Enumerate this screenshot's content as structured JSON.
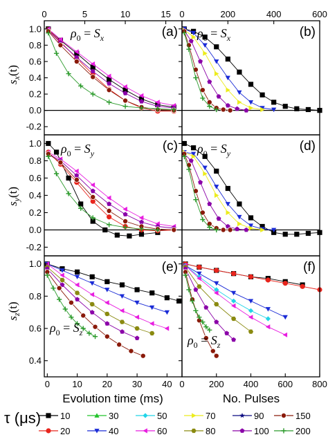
{
  "figure": {
    "top_axis_ticks": [
      "0",
      "5",
      "10",
      "15",
      "0",
      "200",
      "400",
      "600"
    ],
    "legend_title": "τ (μs)"
  },
  "chart_data": [
    {
      "id": "a",
      "type": "scatter",
      "panel_label": "(a)",
      "annotation": "ρ0 = Sx",
      "ylabel": "sx(t)",
      "ylim": [
        -0.3,
        1.1
      ],
      "xlim": [
        0,
        17
      ],
      "grid": false,
      "y_ticks": [
        "-0.2",
        "0.0",
        "0.2",
        "0.4",
        "0.6",
        "0.8",
        "1.0"
      ],
      "x_ticks_top": [
        "0",
        "5",
        "10",
        "15"
      ],
      "series": [
        {
          "name": "10",
          "x": [
            0.5,
            2,
            4,
            6,
            8,
            10,
            12,
            14,
            16
          ],
          "y": [
            1.0,
            0.86,
            0.7,
            0.53,
            0.38,
            0.25,
            0.14,
            0.07,
            0.04
          ]
        },
        {
          "name": "20",
          "x": [
            0.5,
            2,
            4,
            6,
            8,
            10,
            12,
            14,
            16
          ],
          "y": [
            0.99,
            0.84,
            0.64,
            0.44,
            0.26,
            0.12,
            0.03,
            -0.01,
            -0.01
          ]
        },
        {
          "name": "60",
          "x": [
            0.5,
            2,
            4,
            6,
            8,
            10,
            12,
            14,
            16
          ],
          "y": [
            1.0,
            0.87,
            0.72,
            0.57,
            0.42,
            0.29,
            0.18,
            0.1,
            0.06
          ]
        },
        {
          "name": "100",
          "x": [
            0.5,
            2,
            4,
            6,
            8,
            10,
            12,
            14,
            16
          ],
          "y": [
            0.98,
            0.83,
            0.65,
            0.48,
            0.33,
            0.21,
            0.11,
            0.05,
            0.03
          ]
        },
        {
          "name": "150",
          "x": [
            0.5,
            2,
            4,
            6,
            8,
            10,
            12,
            14,
            16
          ],
          "y": [
            0.97,
            0.8,
            0.6,
            0.41,
            0.25,
            0.12,
            0.04,
            0.01,
            0.0
          ]
        },
        {
          "name": "200",
          "x": [
            0.5,
            1.5,
            3,
            4.5,
            6,
            8,
            10,
            12,
            14,
            16
          ],
          "y": [
            0.95,
            0.7,
            0.45,
            0.3,
            0.2,
            0.1,
            0.05,
            0.03,
            0.02,
            0.01
          ]
        }
      ]
    },
    {
      "id": "b",
      "type": "scatter",
      "panel_label": "(b)",
      "annotation": "ρ0 = Sx",
      "ylim": [
        -0.3,
        1.1
      ],
      "xlim": [
        0,
        600
      ],
      "grid": false,
      "x_ticks_top": [
        "0",
        "200",
        "400",
        "600"
      ],
      "series": [
        {
          "name": "10",
          "x": [
            10,
            50,
            100,
            150,
            200,
            250,
            300,
            350,
            400,
            450,
            500,
            550,
            600
          ],
          "y": [
            1.0,
            0.97,
            0.9,
            0.78,
            0.63,
            0.47,
            0.32,
            0.19,
            0.1,
            0.05,
            0.02,
            0.01,
            0.0
          ]
        },
        {
          "name": "40",
          "x": [
            10,
            50,
            100,
            150,
            200,
            250,
            300,
            350,
            400
          ],
          "y": [
            1.0,
            0.95,
            0.8,
            0.6,
            0.4,
            0.22,
            0.1,
            0.03,
            0.01
          ]
        },
        {
          "name": "70",
          "x": [
            10,
            50,
            100,
            150,
            200,
            250,
            300,
            350
          ],
          "y": [
            0.99,
            0.9,
            0.7,
            0.45,
            0.25,
            0.1,
            0.03,
            0.01
          ]
        },
        {
          "name": "100",
          "x": [
            10,
            40,
            80,
            120,
            160,
            200,
            240,
            280
          ],
          "y": [
            0.98,
            0.85,
            0.6,
            0.35,
            0.17,
            0.06,
            0.02,
            0.0
          ]
        },
        {
          "name": "150",
          "x": [
            10,
            30,
            60,
            90,
            120,
            150,
            180,
            210
          ],
          "y": [
            0.97,
            0.8,
            0.5,
            0.25,
            0.1,
            0.03,
            0.01,
            0.0
          ]
        },
        {
          "name": "200",
          "x": [
            10,
            30,
            60,
            90,
            120,
            150
          ],
          "y": [
            0.95,
            0.75,
            0.4,
            0.15,
            0.05,
            0.01
          ]
        }
      ]
    },
    {
      "id": "c",
      "type": "scatter",
      "panel_label": "(c)",
      "annotation": "ρ0 = Sy",
      "ylabel": "sy(t)",
      "ylim": [
        -0.3,
        1.1
      ],
      "xlim": [
        0,
        17
      ],
      "grid": false,
      "y_ticks": [
        "-0.2",
        "0.0",
        "0.2",
        "0.4",
        "0.6",
        "0.8",
        "1.0"
      ],
      "series": [
        {
          "name": "10",
          "x": [
            0.5,
            1.5,
            3,
            4.5,
            6,
            7.5,
            9,
            10.5,
            12,
            14
          ],
          "y": [
            1.0,
            0.9,
            0.6,
            0.3,
            0.1,
            0.0,
            -0.06,
            -0.07,
            -0.05,
            -0.03
          ]
        },
        {
          "name": "20",
          "x": [
            0.5,
            2,
            4,
            6,
            8,
            10,
            12,
            14,
            16
          ],
          "y": [
            0.9,
            0.76,
            0.55,
            0.33,
            0.15,
            0.04,
            0.0,
            -0.01,
            0.0
          ]
        },
        {
          "name": "60",
          "x": [
            0.5,
            2,
            4,
            6,
            8,
            10,
            12,
            14,
            16
          ],
          "y": [
            0.9,
            0.82,
            0.68,
            0.52,
            0.37,
            0.24,
            0.14,
            0.07,
            0.04
          ]
        },
        {
          "name": "100",
          "x": [
            0.5,
            2,
            4,
            6,
            8,
            10,
            12,
            14,
            16
          ],
          "y": [
            0.88,
            0.8,
            0.63,
            0.45,
            0.3,
            0.18,
            0.09,
            0.04,
            0.02
          ]
        },
        {
          "name": "150",
          "x": [
            0.5,
            2,
            4,
            6,
            8,
            10,
            12,
            14,
            16
          ],
          "y": [
            0.88,
            0.78,
            0.58,
            0.38,
            0.22,
            0.1,
            0.04,
            0.01,
            0.0
          ]
        },
        {
          "name": "200",
          "x": [
            0.5,
            1.5,
            3,
            4.5,
            6,
            8,
            10,
            12,
            14
          ],
          "y": [
            0.85,
            0.65,
            0.42,
            0.25,
            0.14,
            0.06,
            0.03,
            0.01,
            0.0
          ]
        }
      ]
    },
    {
      "id": "d",
      "type": "scatter",
      "panel_label": "(d)",
      "annotation": "ρ0 = Sy",
      "ylim": [
        -0.3,
        1.1
      ],
      "xlim": [
        0,
        600
      ],
      "grid": false,
      "series": [
        {
          "name": "10",
          "x": [
            10,
            50,
            100,
            150,
            200,
            250,
            300,
            350,
            400,
            450,
            500,
            550,
            600
          ],
          "y": [
            1.0,
            0.95,
            0.85,
            0.68,
            0.48,
            0.3,
            0.14,
            0.04,
            -0.03,
            -0.05,
            -0.05,
            -0.04,
            -0.03
          ]
        },
        {
          "name": "40",
          "x": [
            10,
            50,
            100,
            150,
            200,
            250,
            300,
            350,
            400
          ],
          "y": [
            0.9,
            0.88,
            0.72,
            0.5,
            0.3,
            0.15,
            0.05,
            0.01,
            0.0
          ]
        },
        {
          "name": "70",
          "x": [
            10,
            50,
            100,
            150,
            200,
            250,
            300,
            350
          ],
          "y": [
            0.9,
            0.85,
            0.65,
            0.4,
            0.2,
            0.07,
            0.02,
            0.0
          ]
        },
        {
          "name": "100",
          "x": [
            10,
            40,
            80,
            120,
            160,
            200,
            240,
            280
          ],
          "y": [
            0.88,
            0.8,
            0.55,
            0.3,
            0.13,
            0.04,
            0.01,
            0.0
          ]
        },
        {
          "name": "150",
          "x": [
            10,
            30,
            60,
            90,
            120,
            150,
            180,
            210
          ],
          "y": [
            0.88,
            0.75,
            0.45,
            0.2,
            0.07,
            0.02,
            0.0,
            0.0
          ]
        },
        {
          "name": "200",
          "x": [
            10,
            30,
            60,
            90,
            120,
            150
          ],
          "y": [
            0.85,
            0.7,
            0.35,
            0.12,
            0.03,
            0.0
          ]
        }
      ]
    },
    {
      "id": "e",
      "type": "scatter",
      "panel_label": "(e)",
      "annotation": "ρ0 = Sz",
      "ylabel": "sz(t)",
      "xlabel": "Evolution time (ms)",
      "ylim": [
        0.3,
        1.05
      ],
      "xlim": [
        -1,
        45
      ],
      "grid": false,
      "y_ticks": [
        "0.4",
        "0.6",
        "0.8",
        "1.0"
      ],
      "x_ticks": [
        "0",
        "10",
        "20",
        "30",
        "40"
      ],
      "series": [
        {
          "name": "10",
          "x": [
            0,
            5,
            10,
            15,
            20,
            25,
            30,
            35,
            40,
            44
          ],
          "y": [
            1.0,
            0.97,
            0.95,
            0.92,
            0.89,
            0.87,
            0.84,
            0.82,
            0.79,
            0.77
          ]
        },
        {
          "name": "40",
          "x": [
            0,
            5,
            10,
            15,
            20,
            25,
            30,
            35,
            40
          ],
          "y": [
            1.0,
            0.96,
            0.92,
            0.88,
            0.84,
            0.8,
            0.76,
            0.73,
            0.7
          ]
        },
        {
          "name": "60",
          "x": [
            0,
            5,
            10,
            15,
            20,
            25,
            30,
            35,
            40
          ],
          "y": [
            1.0,
            0.93,
            0.87,
            0.81,
            0.76,
            0.71,
            0.67,
            0.63,
            0.6
          ]
        },
        {
          "name": "80",
          "x": [
            0,
            5,
            10,
            15,
            20,
            25,
            30,
            35
          ],
          "y": [
            0.98,
            0.9,
            0.82,
            0.75,
            0.69,
            0.64,
            0.6,
            0.57
          ]
        },
        {
          "name": "100",
          "x": [
            0,
            5,
            10,
            15,
            20,
            25,
            30
          ],
          "y": [
            0.97,
            0.87,
            0.78,
            0.7,
            0.63,
            0.58,
            0.54
          ]
        },
        {
          "name": "150",
          "x": [
            0,
            4,
            8,
            12,
            16,
            20,
            24,
            28,
            32
          ],
          "y": [
            0.95,
            0.85,
            0.76,
            0.68,
            0.61,
            0.55,
            0.5,
            0.46,
            0.43
          ]
        },
        {
          "name": "200",
          "x": [
            0,
            2,
            4,
            6,
            8,
            10,
            12,
            14,
            16
          ],
          "y": [
            0.93,
            0.85,
            0.78,
            0.72,
            0.67,
            0.63,
            0.6,
            0.57,
            0.55
          ]
        }
      ]
    },
    {
      "id": "f",
      "type": "scatter",
      "panel_label": "(f)",
      "annotation": "ρ0 = Sz",
      "xlabel": "No. Pulses",
      "ylim": [
        0.3,
        1.05
      ],
      "xlim": [
        0,
        800
      ],
      "grid": false,
      "x_ticks": [
        "0",
        "200",
        "400",
        "600",
        "800"
      ],
      "series": [
        {
          "name": "10",
          "x": [
            20,
            100,
            200,
            300,
            400,
            500,
            600,
            700
          ],
          "y": [
            1.0,
            0.98,
            0.96,
            0.94,
            0.92,
            0.91,
            0.89,
            0.87
          ]
        },
        {
          "name": "20",
          "x": [
            20,
            100,
            200,
            300,
            400,
            500,
            600,
            700,
            800
          ],
          "y": [
            1.0,
            0.98,
            0.96,
            0.94,
            0.92,
            0.9,
            0.88,
            0.86,
            0.84
          ]
        },
        {
          "name": "40",
          "x": [
            20,
            100,
            200,
            300,
            400,
            500,
            600
          ],
          "y": [
            0.99,
            0.94,
            0.88,
            0.82,
            0.77,
            0.72,
            0.67
          ]
        },
        {
          "name": "50",
          "x": [
            20,
            100,
            200,
            300,
            400,
            500
          ],
          "y": [
            0.99,
            0.92,
            0.84,
            0.77,
            0.71,
            0.66
          ]
        },
        {
          "name": "60",
          "x": [
            20,
            100,
            200,
            300,
            400,
            500,
            600
          ],
          "y": [
            0.99,
            0.91,
            0.82,
            0.74,
            0.67,
            0.61,
            0.56
          ]
        },
        {
          "name": "80",
          "x": [
            20,
            100,
            200,
            300,
            400
          ],
          "y": [
            0.98,
            0.86,
            0.75,
            0.66,
            0.58
          ]
        },
        {
          "name": "100",
          "x": [
            20,
            80,
            140,
            200,
            260,
            300
          ],
          "y": [
            0.97,
            0.84,
            0.73,
            0.64,
            0.57,
            0.53
          ]
        },
        {
          "name": "150",
          "x": [
            20,
            60,
            100,
            140,
            180,
            200
          ],
          "y": [
            0.95,
            0.78,
            0.65,
            0.54,
            0.46,
            0.43
          ]
        },
        {
          "name": "200",
          "x": [
            20,
            40,
            60,
            80,
            100,
            120,
            140,
            160
          ],
          "y": [
            0.93,
            0.84,
            0.77,
            0.71,
            0.67,
            0.64,
            0.61,
            0.59
          ]
        }
      ]
    }
  ],
  "legend": [
    {
      "name": "10",
      "color": "#000000",
      "marker": "square"
    },
    {
      "name": "20",
      "color": "#e8241c",
      "marker": "circle"
    },
    {
      "name": "30",
      "color": "#22c32a",
      "marker": "triangle-up"
    },
    {
      "name": "40",
      "color": "#1a2bd6",
      "marker": "triangle-down"
    },
    {
      "name": "50",
      "color": "#22d4e8",
      "marker": "diamond"
    },
    {
      "name": "60",
      "color": "#e81ee0",
      "marker": "triangle-left"
    },
    {
      "name": "70",
      "color": "#ecec1c",
      "marker": "triangle-right"
    },
    {
      "name": "80",
      "color": "#8a8a10",
      "marker": "hexagon"
    },
    {
      "name": "90",
      "color": "#0a0a80",
      "marker": "star"
    },
    {
      "name": "100",
      "color": "#8a00a8",
      "marker": "pentagon"
    },
    {
      "name": "150",
      "color": "#8a1a0a",
      "marker": "ball"
    },
    {
      "name": "200",
      "color": "#2a9a2a",
      "marker": "plus"
    }
  ]
}
